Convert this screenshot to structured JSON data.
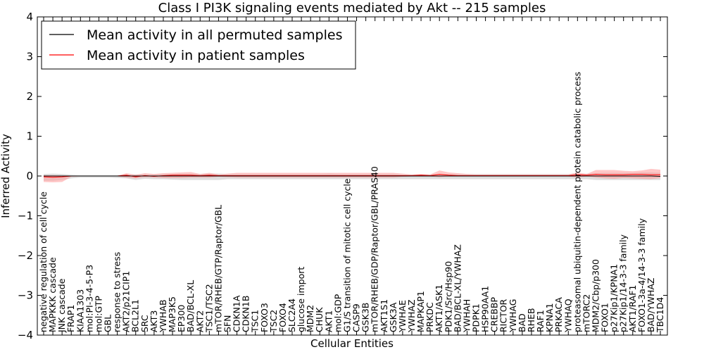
{
  "chart_data": {
    "type": "line",
    "title": "Class I PI3K signaling events mediated by Akt -- 215 samples",
    "xlabel": "Cellular Entities",
    "ylabel": "Inferred Activity",
    "ylim": [
      -4,
      4
    ],
    "yticks": [
      "−4",
      "−3",
      "−2",
      "−1",
      "0",
      "1",
      "2",
      "3",
      "4"
    ],
    "legend_position": "top-left",
    "colors": {
      "permuted": "#000000",
      "patient": "#ff0000",
      "patient_band": "#ff9999",
      "permuted_band": "#c8c8c8"
    },
    "categories": [
      "negative regulation of cell cycle",
      "MAPKKK cascade",
      "JNK cascade",
      "FRAP1",
      "KIAA1303",
      "mol:PI-3-4-5-P3",
      "mol:GTP",
      "GBL",
      "response to stress",
      "AKT2/p21CIP1",
      "BCL2L1",
      "SRC",
      "AKT3",
      "YWHAB",
      "MAP3K5",
      "EP300",
      "BAD/BCL-XL",
      "AKT2",
      "TSC1/TSC2",
      "mTOR/RHEB/GTP/Raptor/GBL",
      "SFN",
      "CDKN1A",
      "CDKN1B",
      "TSC1",
      "FOXO3",
      "TSC2",
      "FOXO4",
      "SLC2A4",
      "glucose import",
      "MDM2",
      "CHUK",
      "AKT1",
      "mol:GDP",
      "G1/S transition of mitotic cell cycle",
      "CASP9",
      "GSK3B",
      "mTOR/RHEB/GDP/Raptor/GBL/PRAS40",
      "AKT1S1",
      "GSK3A",
      "YWHAE",
      "YWHAZ",
      "MAPKAP1",
      "PRKDC",
      "AKT1/ASK1",
      "PDK1/Src/Hsp90",
      "BAD/BCL-XL/YWHAZ",
      "YWHAH",
      "PDPK1",
      "HSP90AA1",
      "CREBBP",
      "RICTOR",
      "YWHAG",
      "BAD",
      "RHEB",
      "RAF1",
      "KPNA1",
      "PRKACA",
      "YWHAQ",
      "proteasomal ubiquitin-dependent protein catabolic process",
      "mTORC2",
      "MDM2/Cbp/p300",
      "FOXO1",
      "p27Kip1/KPNA1",
      "p27Kip1/14-3-3 family",
      "AKT1/RAF1",
      "FOXO1-3a-4/14-3-3 family",
      "BAD/YWHAZ",
      "TBC1D4"
    ],
    "series": [
      {
        "name": "Mean activity in all permuted samples",
        "values": [
          0,
          0,
          0,
          0,
          0,
          0,
          0,
          0,
          0,
          0,
          0,
          0,
          0,
          0,
          0,
          0,
          0,
          0,
          0,
          0,
          0,
          0,
          0,
          0,
          0,
          0,
          0,
          0,
          0,
          0,
          0,
          0,
          0,
          0,
          0,
          0,
          0,
          0,
          0,
          0,
          0,
          0,
          0,
          0,
          0,
          0,
          0,
          0,
          0,
          0,
          0,
          0,
          0,
          0,
          0,
          0,
          0,
          0,
          0,
          0,
          0,
          0,
          0,
          0,
          0,
          0,
          0,
          -0.01
        ],
        "upper": [
          0.05,
          0.06,
          0.05,
          0.03,
          0.02,
          0.02,
          0.02,
          0.02,
          0.02,
          0.03,
          0.04,
          0.04,
          0.04,
          0.05,
          0.05,
          0.06,
          0.06,
          0.05,
          0.06,
          0.06,
          0.05,
          0.05,
          0.05,
          0.05,
          0.05,
          0.05,
          0.05,
          0.05,
          0.05,
          0.05,
          0.05,
          0.06,
          0.05,
          0.05,
          0.05,
          0.05,
          0.05,
          0.05,
          0.05,
          0.04,
          0.04,
          0.04,
          0.04,
          0.05,
          0.05,
          0.05,
          0.05,
          0.05,
          0.05,
          0.05,
          0.05,
          0.05,
          0.05,
          0.05,
          0.05,
          0.05,
          0.05,
          0.05,
          0.05,
          0.06,
          0.07,
          0.08,
          0.08,
          0.08,
          0.08,
          0.09,
          0.09,
          0.08
        ],
        "lower": [
          -0.12,
          -0.12,
          -0.1,
          -0.06,
          -0.04,
          -0.04,
          -0.04,
          -0.04,
          -0.05,
          -0.06,
          -0.1,
          -0.07,
          -0.08,
          -0.08,
          -0.09,
          -0.1,
          -0.1,
          -0.1,
          -0.1,
          -0.1,
          -0.08,
          -0.08,
          -0.08,
          -0.08,
          -0.08,
          -0.08,
          -0.08,
          -0.08,
          -0.08,
          -0.08,
          -0.08,
          -0.08,
          -0.08,
          -0.08,
          -0.08,
          -0.08,
          -0.08,
          -0.08,
          -0.08,
          -0.08,
          -0.08,
          -0.08,
          -0.08,
          -0.08,
          -0.08,
          -0.08,
          -0.08,
          -0.08,
          -0.08,
          -0.08,
          -0.08,
          -0.08,
          -0.08,
          -0.08,
          -0.08,
          -0.08,
          -0.08,
          -0.08,
          -0.08,
          -0.08,
          -0.1,
          -0.1,
          -0.1,
          -0.1,
          -0.1,
          -0.1,
          -0.1,
          -0.1
        ]
      },
      {
        "name": "Mean activity in patient samples",
        "values": [
          -0.02,
          -0.03,
          -0.02,
          0,
          0,
          0,
          0,
          0,
          0,
          0.02,
          -0.02,
          0.01,
          -0.01,
          0.01,
          0.02,
          0.02,
          0.02,
          0.01,
          0.02,
          0.01,
          0.01,
          0.01,
          0.01,
          0.01,
          0.01,
          0.01,
          0.01,
          0.01,
          0.01,
          0.01,
          0.01,
          0.01,
          0.01,
          0.01,
          0.01,
          0.01,
          0.01,
          0.01,
          0.01,
          0.01,
          0.01,
          0.02,
          0.01,
          0.04,
          0.02,
          0.01,
          0.01,
          0.01,
          0.01,
          0.01,
          0.01,
          0.01,
          0.01,
          0.01,
          0.01,
          0.01,
          0.01,
          0.01,
          0.03,
          0.02,
          0.04,
          0.03,
          0.03,
          0.03,
          0.04,
          0.04,
          0.03,
          0.03
        ],
        "upper": [
          0.02,
          0.02,
          0.01,
          0.01,
          0.01,
          0.01,
          0.01,
          0.01,
          0.01,
          0.07,
          0.03,
          0.07,
          0.05,
          0.07,
          0.08,
          0.09,
          0.1,
          0.05,
          0.08,
          0.04,
          0.06,
          0.08,
          0.08,
          0.08,
          0.08,
          0.08,
          0.08,
          0.08,
          0.08,
          0.08,
          0.08,
          0.08,
          0.08,
          0.08,
          0.08,
          0.08,
          0.08,
          0.08,
          0.08,
          0.06,
          0.04,
          0.05,
          0.04,
          0.14,
          0.09,
          0.07,
          0.05,
          0.04,
          0.04,
          0.04,
          0.04,
          0.04,
          0.04,
          0.04,
          0.04,
          0.04,
          0.04,
          0.04,
          0.09,
          0.05,
          0.15,
          0.15,
          0.15,
          0.13,
          0.12,
          0.14,
          0.18,
          0.16
        ],
        "lower": [
          -0.15,
          -0.16,
          -0.15,
          -0.02,
          -0.01,
          -0.01,
          -0.01,
          -0.01,
          -0.01,
          -0.04,
          -0.06,
          -0.03,
          -0.04,
          -0.05,
          -0.05,
          -0.05,
          -0.04,
          -0.04,
          -0.04,
          -0.02,
          -0.03,
          -0.04,
          -0.04,
          -0.04,
          -0.04,
          -0.04,
          -0.04,
          -0.04,
          -0.04,
          -0.04,
          -0.04,
          -0.04,
          -0.04,
          -0.04,
          -0.04,
          -0.04,
          -0.04,
          -0.04,
          -0.04,
          -0.02,
          -0.01,
          -0.01,
          -0.01,
          -0.03,
          -0.01,
          -0.01,
          -0.01,
          -0.01,
          -0.01,
          -0.01,
          -0.01,
          -0.01,
          -0.01,
          -0.01,
          -0.01,
          -0.01,
          -0.01,
          -0.01,
          -0.04,
          -0.01,
          -0.04,
          -0.06,
          -0.07,
          -0.05,
          -0.06,
          -0.07,
          -0.08,
          -0.05
        ]
      }
    ]
  }
}
